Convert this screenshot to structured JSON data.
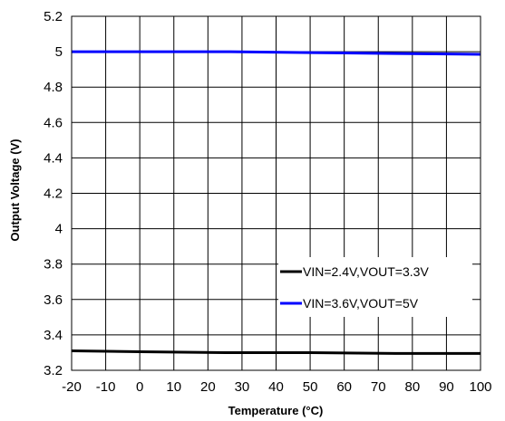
{
  "chart_data": {
    "type": "line",
    "title": "",
    "xlabel": "Temperature (°C)",
    "ylabel": "Output Voltage (V)",
    "xlim": [
      -20,
      100
    ],
    "ylim": [
      3.2,
      5.2
    ],
    "x_ticks": [
      -20,
      -10,
      0,
      10,
      20,
      30,
      40,
      50,
      60,
      70,
      80,
      90,
      100
    ],
    "x_tick_labels": [
      "-20",
      "-10",
      "0",
      "10",
      "20",
      "30",
      "40",
      "50",
      "60",
      "70",
      "80",
      "90",
      "100"
    ],
    "y_ticks": [
      3.2,
      3.4,
      3.6,
      3.8,
      4,
      4.2,
      4.4,
      4.6,
      4.8,
      5,
      5.2
    ],
    "y_tick_labels": [
      "3.2",
      "3.4",
      "3.6",
      "3.8",
      "4",
      "4.2",
      "4.4",
      "4.6",
      "4.8",
      "5",
      "5.2"
    ],
    "grid": true,
    "legend_position": "bottom-right",
    "x": [
      -20,
      0,
      25,
      50,
      75,
      100
    ],
    "series": [
      {
        "name": "VIN=2.4V,VOUT=3.3V",
        "color": "#000000",
        "values": [
          3.31,
          3.305,
          3.3,
          3.3,
          3.295,
          3.295
        ]
      },
      {
        "name": "VIN=3.6V,VOUT=5V",
        "color": "#0000ff",
        "values": [
          5.0,
          5.0,
          5.0,
          4.995,
          4.99,
          4.985
        ]
      }
    ]
  }
}
